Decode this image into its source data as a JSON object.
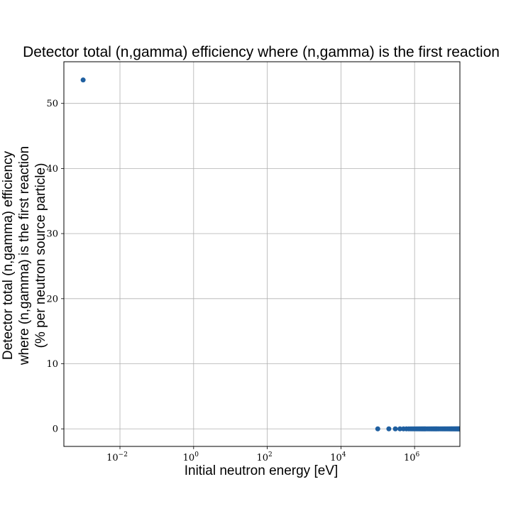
{
  "chart_data": {
    "type": "scatter",
    "title": "Detector total (n,gamma) efficiency where (n,gamma) is the first reaction",
    "xlabel": "Initial neutron energy [eV]",
    "ylabel_lines": [
      "Detector total (n,gamma) efficiency",
      "where (n,gamma) is the first reaction",
      "(% per neutron source particle)"
    ],
    "x_scale": "log",
    "xlim": [
      0.0003,
      17000000
    ],
    "ylim": [
      -2.7,
      56.4
    ],
    "grid": true,
    "marker_color": "#1f5fa0",
    "x_ticks": [
      {
        "value": 0.01,
        "base": "10",
        "exp": "−2"
      },
      {
        "value": 1,
        "base": "10",
        "exp": "0"
      },
      {
        "value": 100,
        "base": "10",
        "exp": "2"
      },
      {
        "value": 10000,
        "base": "10",
        "exp": "4"
      },
      {
        "value": 1000000,
        "base": "10",
        "exp": "6"
      }
    ],
    "y_ticks": [
      0,
      10,
      20,
      30,
      40,
      50
    ],
    "x": [
      0.001,
      100000,
      200000,
      300000,
      400000,
      500000,
      600000,
      700000,
      800000,
      900000,
      1000000,
      1100000,
      1200000,
      1300000,
      1400000,
      1500000,
      1600000,
      1700000,
      1800000,
      1900000,
      2000000,
      2200000,
      2400000,
      2600000,
      2800000,
      3000000,
      3200000,
      3400000,
      3600000,
      3800000,
      4000000,
      4300000,
      4600000,
      5000000,
      5400000,
      5800000,
      6200000,
      6600000,
      7000000,
      7500000,
      8000000,
      8500000,
      9000000,
      9500000,
      10000000,
      10500000,
      11000000,
      11500000,
      12000000,
      12500000,
      13000000,
      13500000,
      14000000,
      14500000,
      15000000,
      15500000,
      16000000,
      16500000,
      17000000
    ],
    "y": [
      53.6,
      0,
      0,
      0,
      0,
      0,
      0,
      0,
      0,
      0,
      0,
      0,
      0,
      0,
      0,
      0,
      0,
      0,
      0,
      0,
      0,
      0,
      0,
      0,
      0,
      0,
      0,
      0,
      0,
      0,
      0,
      0,
      0,
      0,
      0,
      0,
      0,
      0,
      0,
      0,
      0,
      0,
      0,
      0,
      0,
      0,
      0,
      0,
      0,
      0,
      0,
      0,
      0,
      0,
      0,
      0,
      0,
      0,
      0
    ]
  }
}
